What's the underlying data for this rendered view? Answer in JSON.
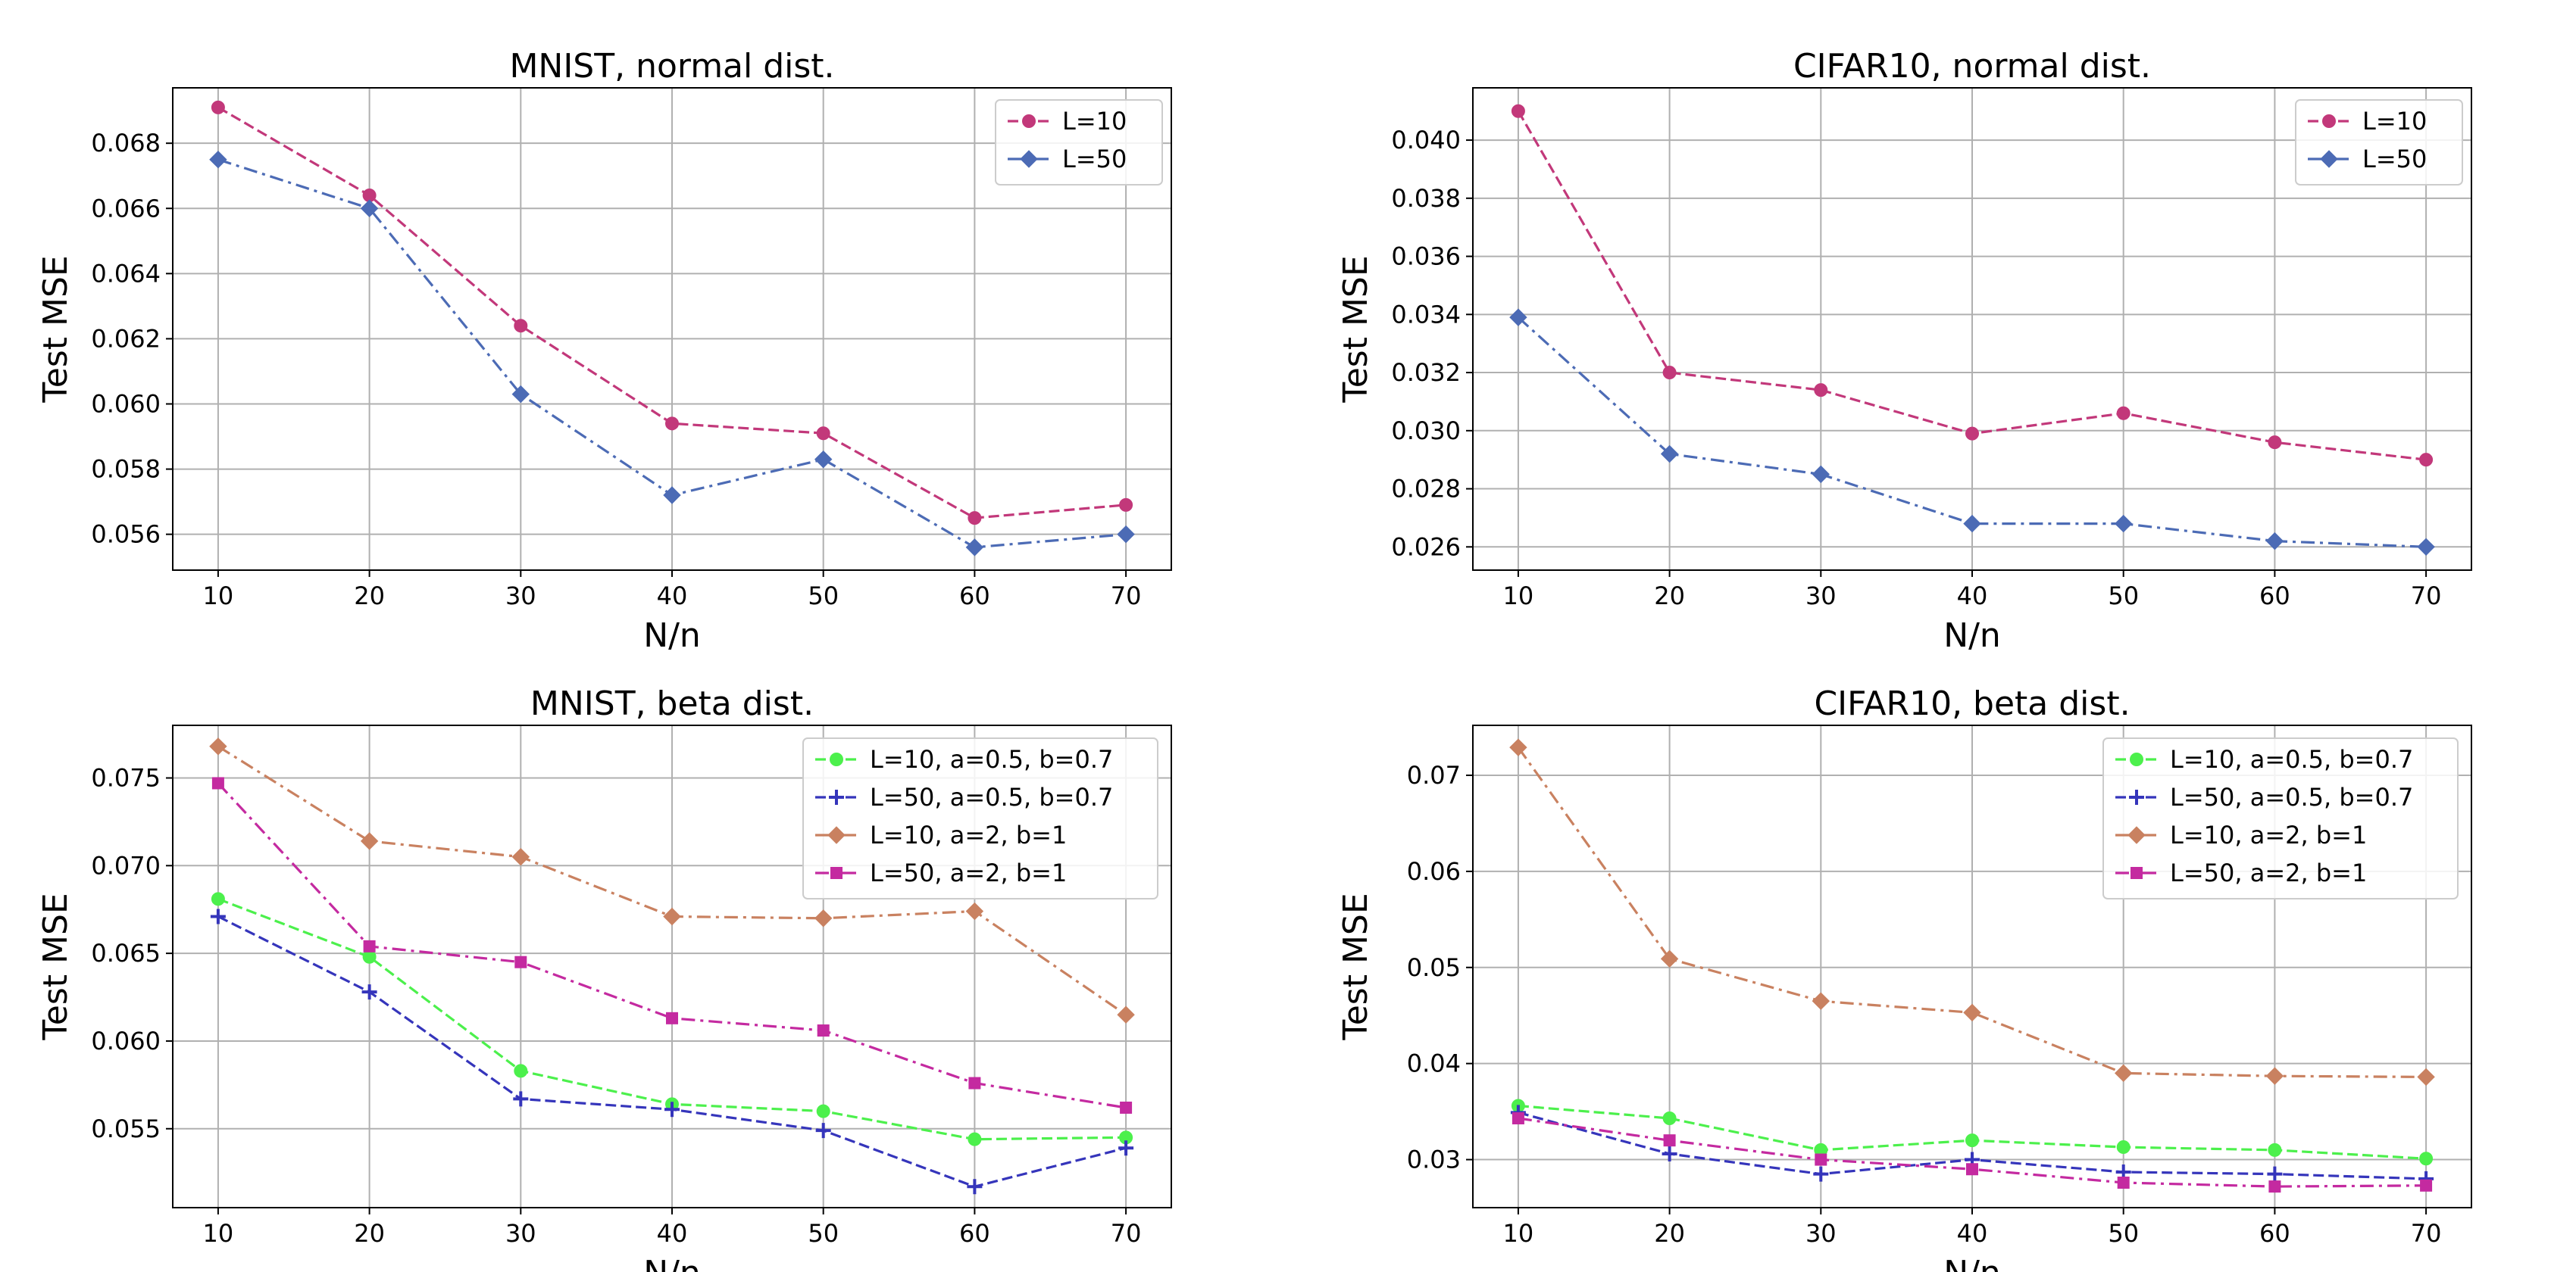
{
  "chart_data": [
    {
      "type": "line",
      "title": "MNIST, normal dist.",
      "xlabel": "N/n",
      "ylabel": "Test MSE",
      "grid": true,
      "legend_position": "top-right",
      "x": [
        10,
        20,
        30,
        40,
        50,
        60,
        70
      ],
      "xlim": [
        7,
        73
      ],
      "ylim": [
        0.0549,
        0.0697
      ],
      "yticks": [
        "0.056",
        "0.058",
        "0.060",
        "0.062",
        "0.064",
        "0.066",
        "0.068"
      ],
      "ytick_values": [
        0.056,
        0.058,
        0.06,
        0.062,
        0.064,
        0.066,
        0.068
      ],
      "xticks": [
        "10",
        "20",
        "30",
        "40",
        "50",
        "60",
        "70"
      ],
      "series": [
        {
          "name": "L=10",
          "color": "#c2387a",
          "marker": "circle",
          "dash": "dashed",
          "values": [
            0.0691,
            0.0664,
            0.0624,
            0.0594,
            0.0591,
            0.0565,
            0.0569
          ]
        },
        {
          "name": "L=50",
          "color": "#4c6bb5",
          "marker": "diamond",
          "dash": "dashdot",
          "values": [
            0.0675,
            0.066,
            0.0603,
            0.0572,
            0.0583,
            0.0556,
            0.056
          ]
        }
      ]
    },
    {
      "type": "line",
      "title": "CIFAR10, normal dist.",
      "xlabel": "N/n",
      "ylabel": "Test MSE",
      "grid": true,
      "legend_position": "top-right",
      "x": [
        10,
        20,
        30,
        40,
        50,
        60,
        70
      ],
      "xlim": [
        7,
        73
      ],
      "ylim": [
        0.0252,
        0.0418
      ],
      "yticks": [
        "0.026",
        "0.028",
        "0.030",
        "0.032",
        "0.034",
        "0.036",
        "0.038",
        "0.040"
      ],
      "ytick_values": [
        0.026,
        0.028,
        0.03,
        0.032,
        0.034,
        0.036,
        0.038,
        0.04
      ],
      "xticks": [
        "10",
        "20",
        "30",
        "40",
        "50",
        "60",
        "70"
      ],
      "series": [
        {
          "name": "L=10",
          "color": "#c2387a",
          "marker": "circle",
          "dash": "dashed",
          "values": [
            0.041,
            0.032,
            0.0314,
            0.0299,
            0.0306,
            0.0296,
            0.029
          ]
        },
        {
          "name": "L=50",
          "color": "#4c6bb5",
          "marker": "diamond",
          "dash": "dashdot",
          "values": [
            0.0339,
            0.0292,
            0.0285,
            0.0268,
            0.0268,
            0.0262,
            0.026
          ]
        }
      ]
    },
    {
      "type": "line",
      "title": "MNIST, beta dist.",
      "xlabel": "N/n",
      "ylabel": "Test MSE",
      "grid": true,
      "legend_position": "top-right",
      "x": [
        10,
        20,
        30,
        40,
        50,
        60,
        70
      ],
      "xlim": [
        7,
        73
      ],
      "ylim": [
        0.0505,
        0.078
      ],
      "yticks": [
        "0.055",
        "0.060",
        "0.065",
        "0.070",
        "0.075"
      ],
      "ytick_values": [
        0.055,
        0.06,
        0.065,
        0.07,
        0.075
      ],
      "xticks": [
        "10",
        "20",
        "30",
        "40",
        "50",
        "60",
        "70"
      ],
      "series": [
        {
          "name": "L=10, a=0.5, b=0.7",
          "color": "#4cf04c",
          "marker": "circle",
          "dash": "dashed",
          "values": [
            0.0681,
            0.0648,
            0.0583,
            0.0564,
            0.056,
            0.0544,
            0.0545
          ]
        },
        {
          "name": "L=50, a=0.5, b=0.7",
          "color": "#3535bb",
          "marker": "plus",
          "dash": "dashed",
          "values": [
            0.0671,
            0.0628,
            0.0567,
            0.0561,
            0.0549,
            0.0517,
            0.0539
          ]
        },
        {
          "name": "L=10, a=2, b=1",
          "color": "#c98160",
          "marker": "diamond",
          "dash": "dashdot",
          "values": [
            0.0768,
            0.0714,
            0.0705,
            0.0671,
            0.067,
            0.0674,
            0.0615
          ]
        },
        {
          "name": "L=50, a=2, b=1",
          "color": "#c42aa0",
          "marker": "square",
          "dash": "dashdot",
          "values": [
            0.0747,
            0.0654,
            0.0645,
            0.0613,
            0.0606,
            0.0576,
            0.0562
          ]
        }
      ]
    },
    {
      "type": "line",
      "title": "CIFAR10, beta dist.",
      "xlabel": "N/n",
      "ylabel": "Test MSE",
      "grid": true,
      "legend_position": "top-right",
      "x": [
        10,
        20,
        30,
        40,
        50,
        60,
        70
      ],
      "xlim": [
        7,
        73
      ],
      "ylim": [
        0.025,
        0.0752
      ],
      "yticks": [
        "0.03",
        "0.04",
        "0.05",
        "0.06",
        "0.07"
      ],
      "ytick_values": [
        0.03,
        0.04,
        0.05,
        0.06,
        0.07
      ],
      "xticks": [
        "10",
        "20",
        "30",
        "40",
        "50",
        "60",
        "70"
      ],
      "series": [
        {
          "name": "L=10, a=0.5, b=0.7",
          "color": "#4cf04c",
          "marker": "circle",
          "dash": "dashed",
          "values": [
            0.0356,
            0.0343,
            0.031,
            0.032,
            0.0313,
            0.031,
            0.0301
          ]
        },
        {
          "name": "L=50, a=0.5, b=0.7",
          "color": "#3535bb",
          "marker": "plus",
          "dash": "dashed",
          "values": [
            0.0349,
            0.0306,
            0.0285,
            0.03,
            0.0287,
            0.0285,
            0.028
          ]
        },
        {
          "name": "L=10, a=2, b=1",
          "color": "#c98160",
          "marker": "diamond",
          "dash": "dashdot",
          "values": [
            0.0729,
            0.0509,
            0.0465,
            0.0453,
            0.039,
            0.0387,
            0.0386
          ]
        },
        {
          "name": "L=50, a=2, b=1",
          "color": "#c42aa0",
          "marker": "square",
          "dash": "dashdot",
          "values": [
            0.0343,
            0.032,
            0.03,
            0.029,
            0.0276,
            0.0272,
            0.0273
          ]
        }
      ]
    }
  ]
}
